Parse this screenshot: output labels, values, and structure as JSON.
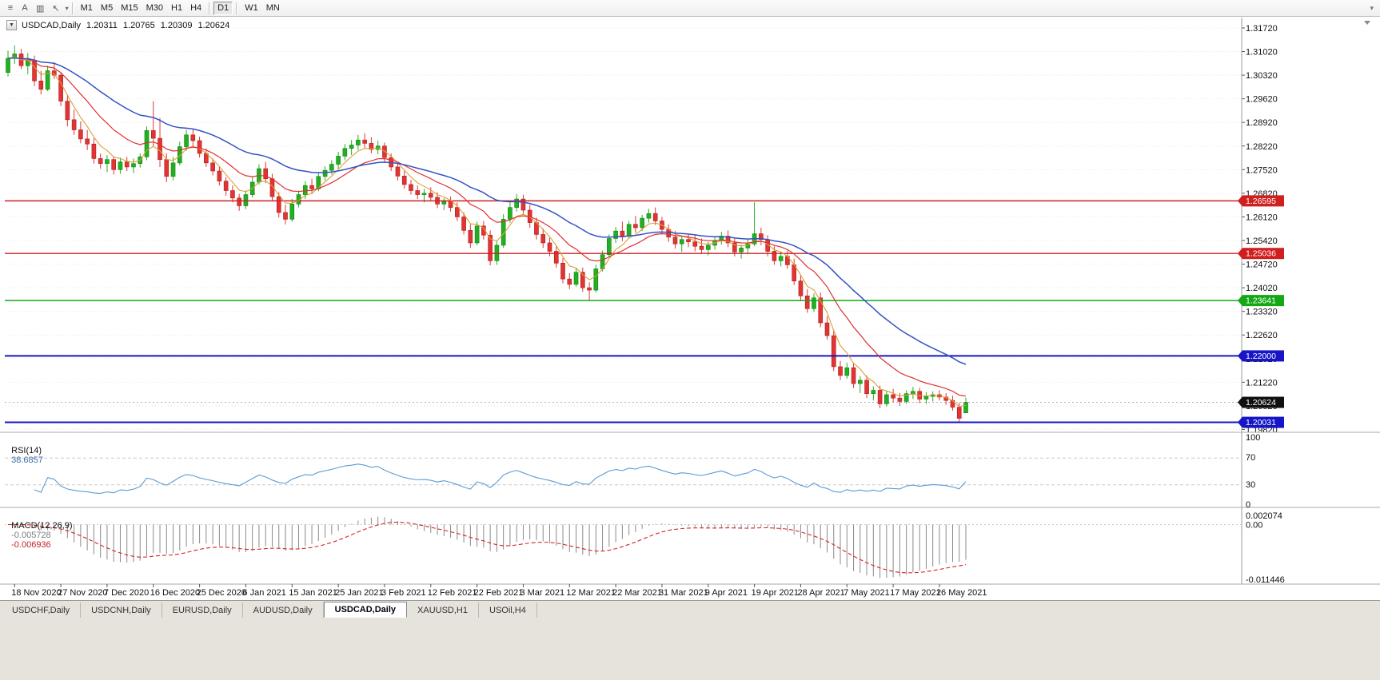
{
  "toolbar": {
    "icons": [
      {
        "name": "menu-icon",
        "glyph": "≡"
      },
      {
        "name": "text-tool-icon",
        "glyph": "A"
      },
      {
        "name": "chart-grid-icon",
        "glyph": "▥"
      },
      {
        "name": "cursor-tool-icon",
        "glyph": "↖"
      }
    ],
    "tool_dropdown_caret": "▾",
    "timeframes": [
      "M1",
      "M5",
      "M15",
      "M30",
      "H1",
      "H4",
      "D1",
      "W1",
      "MN"
    ],
    "active_timeframe": "D1",
    "overflow_icon": "▾"
  },
  "panes": {
    "rsi": {
      "label": "RSI(14)",
      "value": "38.6857",
      "axis_labels": [
        "100",
        "70",
        "30",
        "0"
      ],
      "level_lines": [
        70,
        30
      ]
    },
    "macd": {
      "label": "MACD(12,26,9)",
      "value": "-0.005728",
      "signal": "-0.006936",
      "axis_max": "0.002074",
      "axis_zero": "0.00",
      "axis_min": "-0.011446"
    }
  },
  "tabbar": {
    "tabs": [
      "USDCHF,Daily",
      "USDCNH,Daily",
      "EURUSD,Daily",
      "AUDUSD,Daily",
      "USDCAD,Daily",
      "XAUUSD,H1",
      "USOil,H4"
    ],
    "active": "USDCAD,Daily"
  },
  "chart_data": {
    "type": "candlestick",
    "symbol": "USDCAD",
    "timeframe": "Daily",
    "header": {
      "collapse_icon": "▼",
      "symbol": "USDCAD,Daily",
      "open": "1.20311",
      "high": "1.20765",
      "low": "1.20309",
      "close": "1.20624"
    },
    "y_axis_labels": [
      "1.31720",
      "1.31020",
      "1.30320",
      "1.29620",
      "1.28920",
      "1.28220",
      "1.27520",
      "1.26820",
      "1.26120",
      "1.25420",
      "1.24720",
      "1.24020",
      "1.23320",
      "1.22620",
      "1.21920",
      "1.21220",
      "1.20520",
      "1.19820"
    ],
    "x_labels": [
      "18 Nov 2020",
      "27 Nov 2020",
      "7 Dec 2020",
      "16 Dec 2020",
      "25 Dec 2020",
      "6 Jan 2021",
      "15 Jan 2021",
      "25 Jan 2021",
      "3 Feb 2021",
      "12 Feb 2021",
      "22 Feb 2021",
      "3 Mar 2021",
      "12 Mar 2021",
      "22 Mar 2021",
      "31 Mar 2021",
      "9 Apr 2021",
      "19 Apr 2021",
      "28 Apr 2021",
      "7 May 2021",
      "17 May 2021",
      "26 May 2021"
    ],
    "x_label_indices": [
      1,
      8,
      15,
      22,
      29,
      36,
      43,
      50,
      57,
      64,
      71,
      78,
      85,
      92,
      99,
      106,
      113,
      120,
      127,
      134,
      141
    ],
    "levels": [
      {
        "price": 1.26595,
        "tag": "1.26595",
        "color_key": "level_red",
        "width": 1.4
      },
      {
        "price": 1.25036,
        "tag": "1.25036",
        "color_key": "level_red",
        "width": 1.4
      },
      {
        "price": 1.23641,
        "tag": "1.23641",
        "color_key": "level_green",
        "width": 1.4
      },
      {
        "price": 1.22,
        "tag": "1.22000",
        "color_key": "level_blue",
        "width": 2
      },
      {
        "price": 1.20031,
        "tag": "1.20031",
        "color_key": "level_blue",
        "width": 2
      }
    ],
    "current_price": {
      "price": 1.20624,
      "tag": "1.20624"
    },
    "colors": {
      "up": "#21b021",
      "up_edge": "#128212",
      "down": "#e33434",
      "down_edge": "#a81d1d",
      "ma_fast": "#dd9f33",
      "ma_mid": "#e03030",
      "ma_slow": "#3353c4",
      "grid": "#e4e4e4",
      "rsi_line": "#5b9bd5",
      "macd_hist": "#8a8a8a",
      "macd_signal": "#d42424",
      "level_red": "#d01f1f",
      "level_green": "#13a913",
      "level_blue": "#1616c8",
      "current_tag": "#101010",
      "axis_text": "#111111"
    },
    "ohlc": [
      [
        1.304,
        1.3105,
        1.3028,
        1.3082
      ],
      [
        1.3082,
        1.312,
        1.3065,
        1.3095
      ],
      [
        1.3095,
        1.311,
        1.305,
        1.306
      ],
      [
        1.306,
        1.3098,
        1.3035,
        1.3075
      ],
      [
        1.3075,
        1.309,
        1.3,
        1.3015
      ],
      [
        1.3015,
        1.3045,
        1.2975,
        1.299
      ],
      [
        1.299,
        1.306,
        1.2985,
        1.3045
      ],
      [
        1.3045,
        1.307,
        1.302,
        1.3032
      ],
      [
        1.3032,
        1.304,
        1.294,
        1.2955
      ],
      [
        1.2955,
        1.2975,
        1.288,
        1.29
      ],
      [
        1.29,
        1.293,
        1.2855,
        1.287
      ],
      [
        1.287,
        1.2895,
        1.283,
        1.2843
      ],
      [
        1.2843,
        1.287,
        1.281,
        1.2828
      ],
      [
        1.2828,
        1.2845,
        1.277,
        1.2785
      ],
      [
        1.2785,
        1.28,
        1.2755,
        1.277
      ],
      [
        1.277,
        1.2795,
        1.2745,
        1.2782
      ],
      [
        1.2782,
        1.279,
        1.2738,
        1.2752
      ],
      [
        1.2752,
        1.2788,
        1.274,
        1.2775
      ],
      [
        1.2775,
        1.279,
        1.2748,
        1.276
      ],
      [
        1.276,
        1.2785,
        1.2742,
        1.277
      ],
      [
        1.277,
        1.28,
        1.2758,
        1.279
      ],
      [
        1.279,
        1.288,
        1.278,
        1.2868
      ],
      [
        1.2868,
        1.2955,
        1.282,
        1.2845
      ],
      [
        1.2845,
        1.2905,
        1.276,
        1.2782
      ],
      [
        1.2782,
        1.28,
        1.2715,
        1.2732
      ],
      [
        1.2732,
        1.279,
        1.272,
        1.2772
      ],
      [
        1.2772,
        1.2835,
        1.2765,
        1.282
      ],
      [
        1.282,
        1.287,
        1.2808,
        1.2855
      ],
      [
        1.2855,
        1.2872,
        1.282,
        1.2838
      ],
      [
        1.2838,
        1.285,
        1.2788,
        1.28
      ],
      [
        1.28,
        1.2815,
        1.276,
        1.2772
      ],
      [
        1.2772,
        1.2785,
        1.2735,
        1.2748
      ],
      [
        1.2748,
        1.276,
        1.2705,
        1.2718
      ],
      [
        1.2718,
        1.273,
        1.2675,
        1.269
      ],
      [
        1.269,
        1.2705,
        1.2655,
        1.2668
      ],
      [
        1.2668,
        1.268,
        1.263,
        1.2645
      ],
      [
        1.2645,
        1.269,
        1.2635,
        1.2678
      ],
      [
        1.2678,
        1.273,
        1.267,
        1.2715
      ],
      [
        1.2715,
        1.2768,
        1.2708,
        1.2755
      ],
      [
        1.2755,
        1.2775,
        1.2712,
        1.2725
      ],
      [
        1.2725,
        1.274,
        1.266,
        1.2672
      ],
      [
        1.2672,
        1.2685,
        1.261,
        1.2625
      ],
      [
        1.2625,
        1.2648,
        1.259,
        1.2605
      ],
      [
        1.2605,
        1.2665,
        1.2598,
        1.265
      ],
      [
        1.265,
        1.269,
        1.264,
        1.2678
      ],
      [
        1.2678,
        1.2718,
        1.2665,
        1.2705
      ],
      [
        1.2705,
        1.2725,
        1.268,
        1.2695
      ],
      [
        1.2695,
        1.2745,
        1.2688,
        1.2732
      ],
      [
        1.2732,
        1.2762,
        1.272,
        1.275
      ],
      [
        1.275,
        1.278,
        1.2738,
        1.2768
      ],
      [
        1.2768,
        1.2805,
        1.2755,
        1.2792
      ],
      [
        1.2792,
        1.2828,
        1.278,
        1.2815
      ],
      [
        1.2815,
        1.284,
        1.2795,
        1.2825
      ],
      [
        1.2825,
        1.2855,
        1.281,
        1.284
      ],
      [
        1.284,
        1.286,
        1.2815,
        1.283
      ],
      [
        1.283,
        1.2848,
        1.28,
        1.2812
      ],
      [
        1.2812,
        1.2838,
        1.2798,
        1.2822
      ],
      [
        1.2822,
        1.2832,
        1.2775,
        1.2788
      ],
      [
        1.2788,
        1.28,
        1.2748,
        1.276
      ],
      [
        1.276,
        1.2775,
        1.272,
        1.2733
      ],
      [
        1.2733,
        1.2748,
        1.2695,
        1.2708
      ],
      [
        1.2708,
        1.2722,
        1.2678,
        1.269
      ],
      [
        1.269,
        1.2705,
        1.2665,
        1.2678
      ],
      [
        1.2678,
        1.2695,
        1.2655,
        1.2682
      ],
      [
        1.2682,
        1.27,
        1.266,
        1.267
      ],
      [
        1.267,
        1.2685,
        1.2638,
        1.265
      ],
      [
        1.265,
        1.2668,
        1.2632,
        1.2658
      ],
      [
        1.2658,
        1.2672,
        1.2628,
        1.264
      ],
      [
        1.264,
        1.2655,
        1.26,
        1.2612
      ],
      [
        1.2612,
        1.2625,
        1.256,
        1.2572
      ],
      [
        1.2572,
        1.259,
        1.252,
        1.2535
      ],
      [
        1.2535,
        1.2598,
        1.2528,
        1.2585
      ],
      [
        1.2585,
        1.26,
        1.2545,
        1.2558
      ],
      [
        1.2558,
        1.2572,
        1.2468,
        1.2482
      ],
      [
        1.2482,
        1.254,
        1.247,
        1.2528
      ],
      [
        1.2528,
        1.262,
        1.252,
        1.2605
      ],
      [
        1.2605,
        1.2655,
        1.2595,
        1.264
      ],
      [
        1.264,
        1.268,
        1.2628,
        1.2665
      ],
      [
        1.2665,
        1.2678,
        1.2618,
        1.2632
      ],
      [
        1.2632,
        1.2648,
        1.258,
        1.2595
      ],
      [
        1.2595,
        1.261,
        1.2545,
        1.256
      ],
      [
        1.256,
        1.2578,
        1.252,
        1.2535
      ],
      [
        1.2535,
        1.255,
        1.2495,
        1.251
      ],
      [
        1.251,
        1.2525,
        1.2462,
        1.2475
      ],
      [
        1.2475,
        1.249,
        1.2415,
        1.2428
      ],
      [
        1.2428,
        1.2445,
        1.2398,
        1.2412
      ],
      [
        1.2412,
        1.246,
        1.2405,
        1.2448
      ],
      [
        1.2448,
        1.2462,
        1.239,
        1.2402
      ],
      [
        1.2402,
        1.2418,
        1.2365,
        1.2395
      ],
      [
        1.2395,
        1.247,
        1.2388,
        1.2458
      ],
      [
        1.2458,
        1.2512,
        1.245,
        1.25
      ],
      [
        1.25,
        1.256,
        1.2492,
        1.2548
      ],
      [
        1.2548,
        1.2582,
        1.2535,
        1.257
      ],
      [
        1.257,
        1.2598,
        1.254,
        1.2555
      ],
      [
        1.2555,
        1.26,
        1.2548,
        1.259
      ],
      [
        1.259,
        1.2615,
        1.2565,
        1.258
      ],
      [
        1.258,
        1.2618,
        1.257,
        1.2608
      ],
      [
        1.2608,
        1.2636,
        1.2595,
        1.2622
      ],
      [
        1.2622,
        1.264,
        1.2588,
        1.26
      ],
      [
        1.26,
        1.2612,
        1.256,
        1.2575
      ],
      [
        1.2575,
        1.259,
        1.2538,
        1.2552
      ],
      [
        1.2552,
        1.257,
        1.2518,
        1.2532
      ],
      [
        1.2532,
        1.2555,
        1.2508,
        1.2545
      ],
      [
        1.2545,
        1.2562,
        1.2522,
        1.2538
      ],
      [
        1.2538,
        1.2558,
        1.251,
        1.2525
      ],
      [
        1.2525,
        1.2548,
        1.2502,
        1.2515
      ],
      [
        1.2515,
        1.2538,
        1.2498,
        1.2528
      ],
      [
        1.2528,
        1.2552,
        1.2515,
        1.2542
      ],
      [
        1.2542,
        1.2568,
        1.253,
        1.2555
      ],
      [
        1.2555,
        1.2572,
        1.2522,
        1.2535
      ],
      [
        1.2535,
        1.2548,
        1.2495,
        1.2508
      ],
      [
        1.2508,
        1.253,
        1.2488,
        1.252
      ],
      [
        1.252,
        1.2545,
        1.2505,
        1.2532
      ],
      [
        1.2532,
        1.2655,
        1.2525,
        1.2562
      ],
      [
        1.2562,
        1.258,
        1.2528,
        1.2545
      ],
      [
        1.2545,
        1.2558,
        1.2495,
        1.251
      ],
      [
        1.251,
        1.2525,
        1.247,
        1.2482
      ],
      [
        1.2482,
        1.2508,
        1.2465,
        1.2495
      ],
      [
        1.2495,
        1.2512,
        1.2458,
        1.247
      ],
      [
        1.247,
        1.2488,
        1.241,
        1.2422
      ],
      [
        1.2422,
        1.244,
        1.2365,
        1.2378
      ],
      [
        1.2378,
        1.2398,
        1.2328,
        1.234
      ],
      [
        1.234,
        1.2385,
        1.233,
        1.2372
      ],
      [
        1.2372,
        1.2388,
        1.2285,
        1.2298
      ],
      [
        1.2298,
        1.2318,
        1.2248,
        1.226
      ],
      [
        1.226,
        1.2278,
        1.2155,
        1.2168
      ],
      [
        1.2168,
        1.2185,
        1.2128,
        1.2142
      ],
      [
        1.2142,
        1.218,
        1.2132,
        1.2165
      ],
      [
        1.2165,
        1.2178,
        1.2105,
        1.2118
      ],
      [
        1.2118,
        1.214,
        1.209,
        1.2128
      ],
      [
        1.2128,
        1.2142,
        1.2075,
        1.2088
      ],
      [
        1.2088,
        1.211,
        1.2068,
        1.2098
      ],
      [
        1.2098,
        1.2112,
        1.2045,
        1.2058
      ],
      [
        1.2058,
        1.2095,
        1.205,
        1.2085
      ],
      [
        1.2085,
        1.2102,
        1.2062,
        1.2075
      ],
      [
        1.2075,
        1.209,
        1.2052,
        1.2065
      ],
      [
        1.2065,
        1.2098,
        1.2058,
        1.2088
      ],
      [
        1.2088,
        1.2108,
        1.2072,
        1.2095
      ],
      [
        1.2095,
        1.2105,
        1.206,
        1.2072
      ],
      [
        1.2072,
        1.2092,
        1.2058,
        1.208
      ],
      [
        1.208,
        1.2095,
        1.2065,
        1.2085
      ],
      [
        1.2085,
        1.2098,
        1.2068,
        1.2078
      ],
      [
        1.2078,
        1.209,
        1.2055,
        1.2068
      ],
      [
        1.2068,
        1.2082,
        1.2038,
        1.2048
      ],
      [
        1.2048,
        1.2062,
        1.2003,
        1.2015
      ],
      [
        1.20311,
        1.20765,
        1.20309,
        1.20624
      ]
    ]
  }
}
